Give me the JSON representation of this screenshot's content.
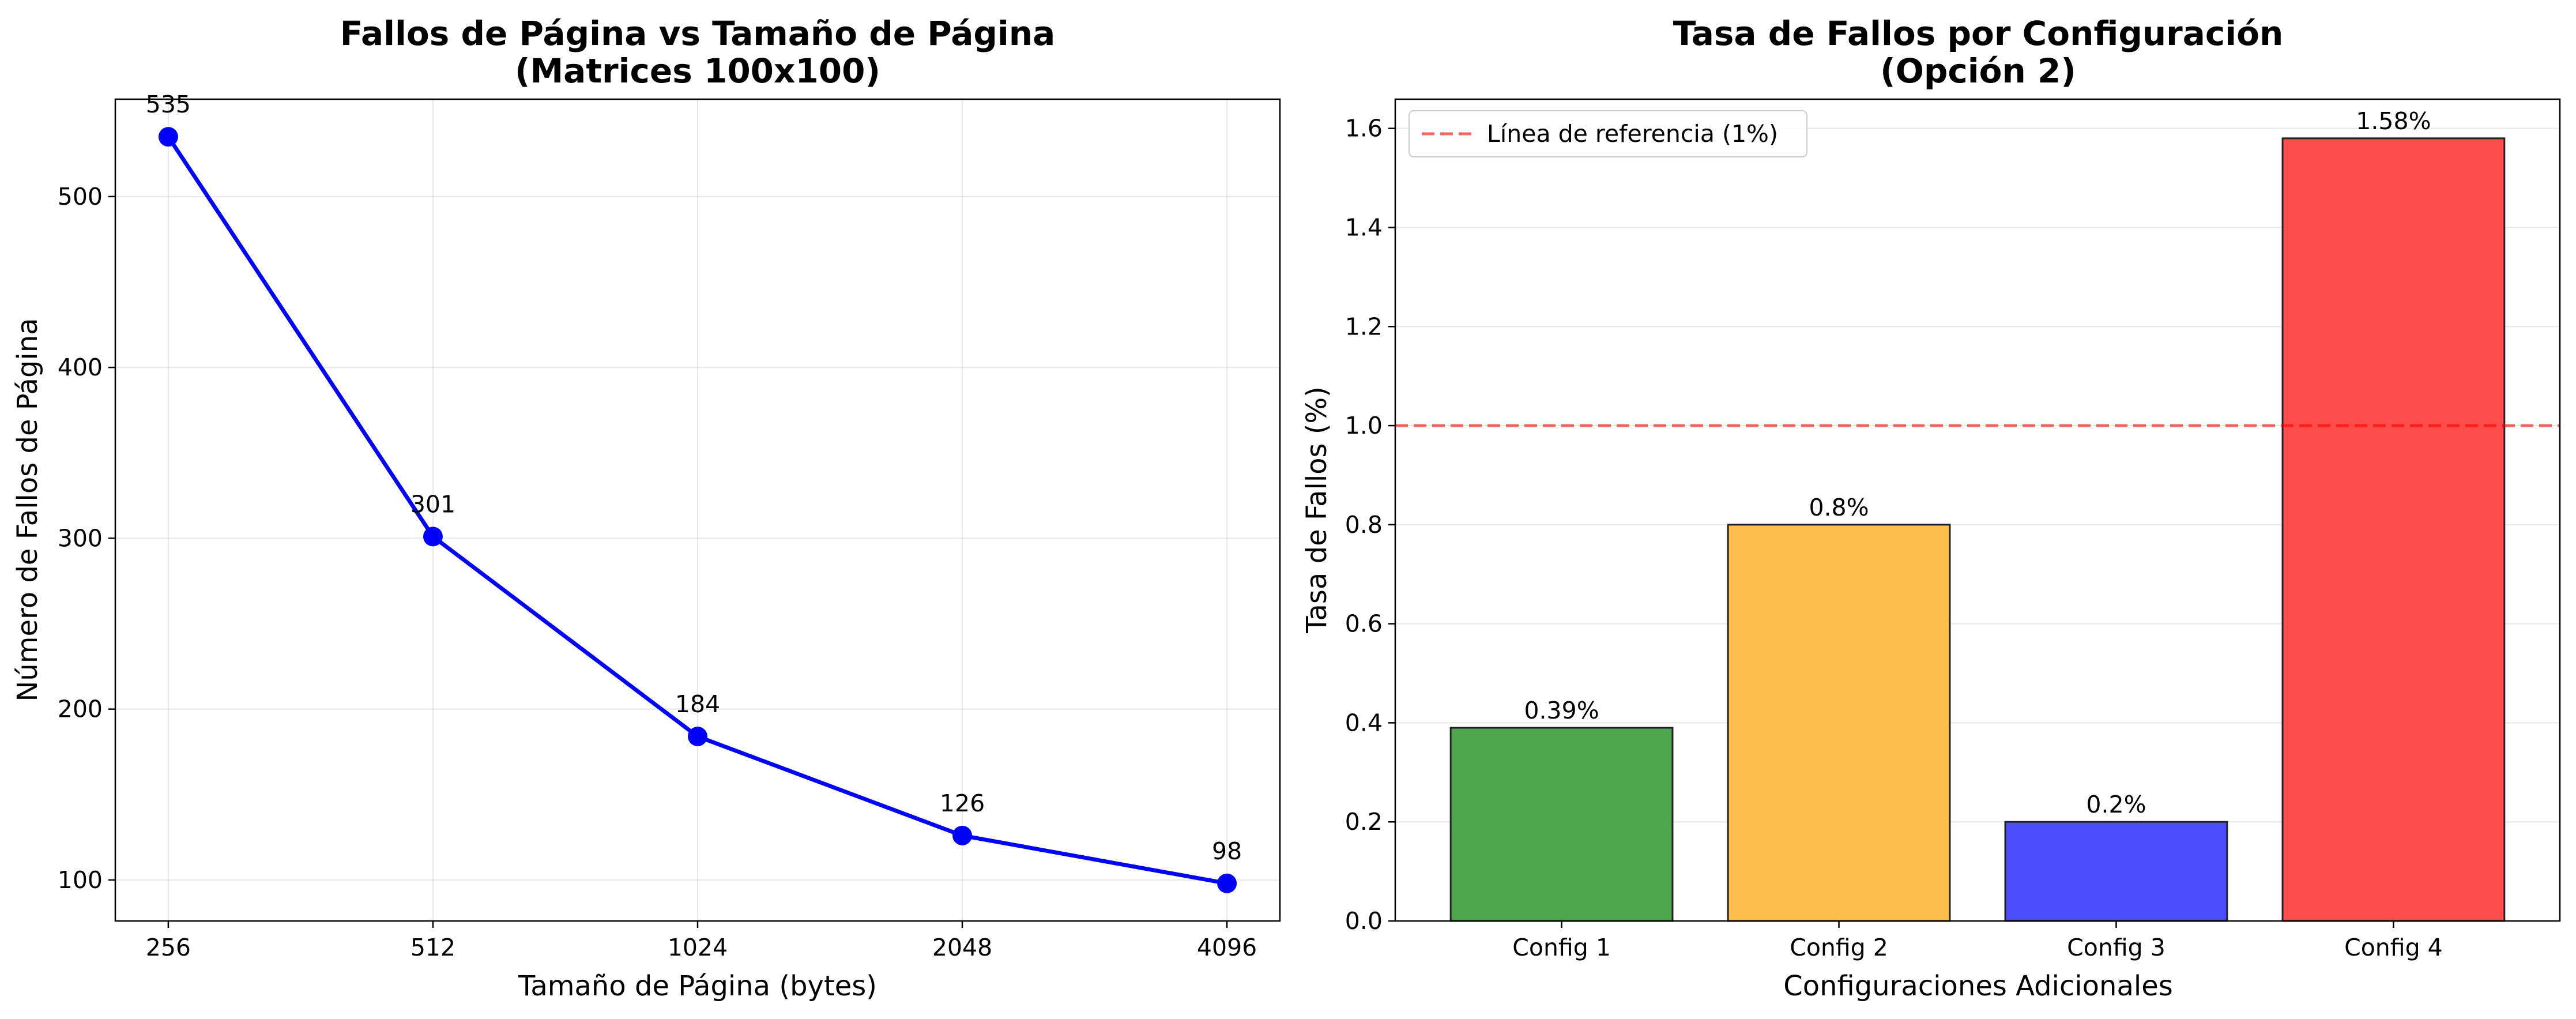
{
  "chart_data": [
    {
      "type": "line",
      "title": "Fallos de Página vs Tamaño de Página",
      "subtitle": "(Matrices 100x100)",
      "xlabel": "Tamaño de Página (bytes)",
      "ylabel": "Número de Fallos de Página",
      "categories": [
        "256",
        "512",
        "1024",
        "2048",
        "4096"
      ],
      "values": [
        535,
        301,
        184,
        126,
        98
      ],
      "value_labels": [
        "535",
        "301",
        "184",
        "126",
        "98"
      ],
      "yticks": [
        100,
        200,
        300,
        400,
        500
      ],
      "ylim": [
        76,
        557
      ],
      "grid": true,
      "color": "#0000ff"
    },
    {
      "type": "bar",
      "title": "Tasa de Fallos por Configuración",
      "subtitle": "(Opción 2)",
      "xlabel": "Configuraciones Adicionales",
      "ylabel": "Tasa de Fallos (%)",
      "categories": [
        "Config 1",
        "Config 2",
        "Config 3",
        "Config 4"
      ],
      "values": [
        0.39,
        0.8,
        0.2,
        1.58
      ],
      "value_labels": [
        "0.39%",
        "0.8%",
        "0.2%",
        "1.58%"
      ],
      "colors": [
        "#4ca64c",
        "#ffbf4c",
        "#4c4cff",
        "#ff4c4c"
      ],
      "yticks": [
        "0.0",
        "0.2",
        "0.4",
        "0.6",
        "0.8",
        "1.0",
        "1.2",
        "1.4",
        "1.6"
      ],
      "ylim": [
        0,
        1.659
      ],
      "grid": true,
      "reference_line": {
        "value": 1.0,
        "label": "Línea de referencia (1%)",
        "color": "#ff0000"
      },
      "legend_position": "top-left"
    }
  ]
}
